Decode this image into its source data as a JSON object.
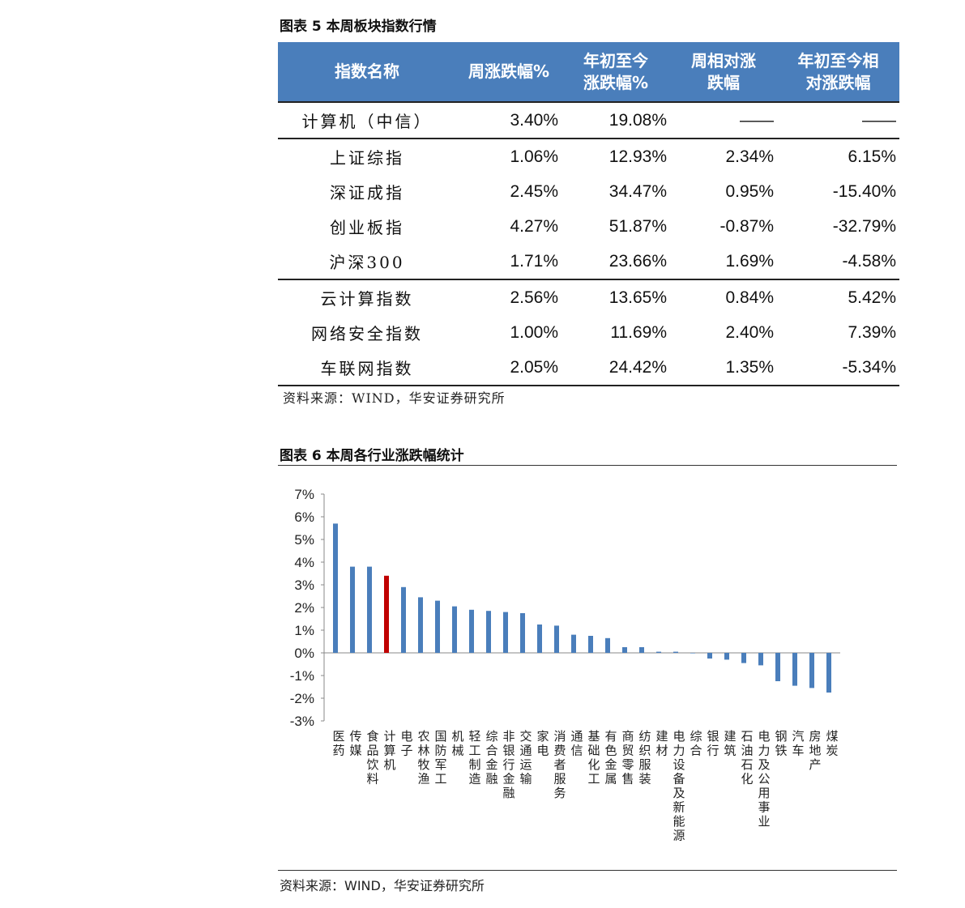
{
  "table5": {
    "title": "图表 5 本周板块指数行情",
    "headers": [
      "指数名称",
      "周涨跌幅%",
      "年初至今\n涨跌幅%",
      "周相对涨\n跌幅",
      "年初至今相\n对涨跌幅"
    ],
    "rows": [
      {
        "name": "计算机（中信）",
        "week": "3.40%",
        "ytd": "19.08%",
        "rel_week": "——",
        "rel_ytd": "——"
      },
      {
        "name": "上证综指",
        "week": "1.06%",
        "ytd": "12.93%",
        "rel_week": "2.34%",
        "rel_ytd": "6.15%"
      },
      {
        "name": "深证成指",
        "week": "2.45%",
        "ytd": "34.47%",
        "rel_week": "0.95%",
        "rel_ytd": "-15.40%"
      },
      {
        "name": "创业板指",
        "week": "4.27%",
        "ytd": "51.87%",
        "rel_week": "-0.87%",
        "rel_ytd": "-32.79%"
      },
      {
        "name": "沪深300",
        "week": "1.71%",
        "ytd": "23.66%",
        "rel_week": "1.69%",
        "rel_ytd": "-4.58%"
      },
      {
        "name": "云计算指数",
        "week": "2.56%",
        "ytd": "13.65%",
        "rel_week": "0.84%",
        "rel_ytd": "5.42%"
      },
      {
        "name": "网络安全指数",
        "week": "1.00%",
        "ytd": "11.69%",
        "rel_week": "2.40%",
        "rel_ytd": "7.39%"
      },
      {
        "name": "车联网指数",
        "week": "2.05%",
        "ytd": "24.42%",
        "rel_week": "1.35%",
        "rel_ytd": "-5.34%"
      }
    ],
    "source": "资料来源：WIND，华安证券研究所"
  },
  "figure6": {
    "title": "图表 6 本周各行业涨跌幅统计",
    "source": "资料来源：WIND，华安证券研究所"
  },
  "chart_data": {
    "type": "bar",
    "title": "",
    "xlabel": "",
    "ylabel": "",
    "ylim": [
      -3,
      7
    ],
    "yticks": [
      "7%",
      "6%",
      "5%",
      "4%",
      "3%",
      "2%",
      "1%",
      "0%",
      "-1%",
      "-2%",
      "-3%"
    ],
    "grid": false,
    "bar_color": "#4a7ebb",
    "highlight_color": "#c00000",
    "highlight_category": "计算机",
    "categories": [
      "医药",
      "传媒",
      "食品饮料",
      "计算机",
      "电子",
      "农林牧渔",
      "国防军工",
      "机械",
      "轻工制造",
      "综合金融",
      "非银行金融",
      "交通运输",
      "家电",
      "消费者服务",
      "通信",
      "基础化工",
      "有色金属",
      "商贸零售",
      "纺织服装",
      "建材",
      "电力设备及新能源",
      "综合",
      "银行",
      "建筑",
      "石油石化",
      "电力及公用事业",
      "钢铁",
      "汽车",
      "房地产",
      "煤炭"
    ],
    "values": [
      5.7,
      3.8,
      3.8,
      3.4,
      2.9,
      2.45,
      2.3,
      2.05,
      1.9,
      1.85,
      1.8,
      1.75,
      1.25,
      1.2,
      0.8,
      0.75,
      0.65,
      0.25,
      0.25,
      0.05,
      0.05,
      0.0,
      -0.25,
      -0.3,
      -0.45,
      -0.55,
      -1.25,
      -1.45,
      -1.55,
      -1.75
    ]
  }
}
